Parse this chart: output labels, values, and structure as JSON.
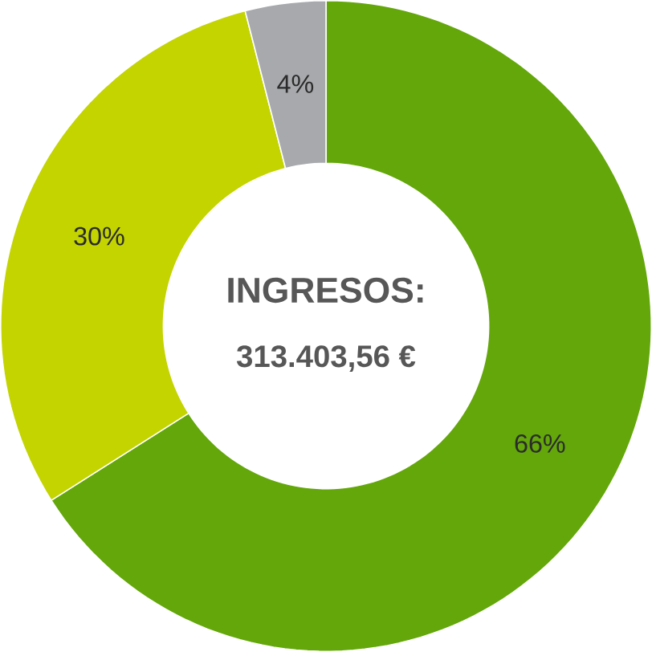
{
  "chart_data": {
    "type": "donut",
    "title": "INGRESOS:",
    "subtitle": "313.403,56 €",
    "categories": [
      null,
      null,
      null
    ],
    "values": [
      66,
      30,
      4
    ],
    "colors": [
      "#63a70a",
      "#c3d400",
      "#a7a9ac"
    ],
    "value_labels": [
      "66%",
      "30%",
      "4%"
    ]
  }
}
